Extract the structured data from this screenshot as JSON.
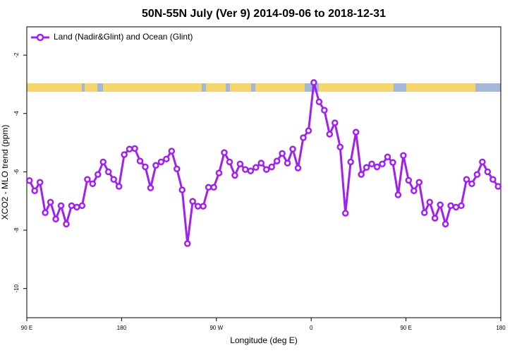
{
  "chart_data": {
    "type": "line",
    "title": "50N-55N July (Ver 9)   2014-09-06 to 2018-12-31",
    "x_label": "Longitude (deg E)",
    "y_label": "XCO2 - MLO trend (ppm)",
    "x": [
      92.5,
      97.5,
      102.5,
      107.5,
      112.5,
      117.5,
      122.5,
      127.5,
      132.5,
      137.5,
      142.5,
      147.5,
      152.5,
      157.5,
      162.5,
      167.5,
      172.5,
      177.5,
      182.5,
      187.5,
      192.5,
      197.5,
      202.5,
      207.5,
      212.5,
      217.5,
      222.5,
      227.5,
      232.5,
      237.5,
      242.5,
      247.5,
      252.5,
      257.5,
      262.5,
      267.5,
      272.5,
      277.5,
      282.5,
      287.5,
      292.5,
      297.5,
      302.5,
      307.5,
      312.5,
      317.5,
      322.5,
      327.5,
      332.5,
      337.5,
      342.5,
      347.5,
      352.5,
      357.5,
      362.5,
      367.5,
      372.5,
      377.5,
      382.5,
      387.5,
      392.5,
      397.5,
      402.5,
      407.5,
      412.5,
      417.5,
      422.5,
      427.5,
      432.5,
      437.5,
      442.5,
      447.5,
      452.5,
      457.5,
      462.5,
      467.5,
      472.5,
      477.5,
      482.5,
      487.5,
      492.5,
      497.5,
      502.5,
      507.5,
      512.5,
      517.5,
      522.5,
      527.5,
      532.5,
      537.5
    ],
    "series": [
      {
        "name": "Land (Nadir&Glint) and Ocean (Glint)",
        "color": "#a020f0",
        "values": [
          -6.3,
          -6.65,
          -6.36,
          -7.4,
          -7.04,
          -7.62,
          -7.16,
          -7.79,
          -7.16,
          -7.21,
          -7.16,
          -6.26,
          -6.41,
          -6.09,
          -5.66,
          -6.0,
          -6.26,
          -6.5,
          -5.41,
          -5.22,
          -5.2,
          -5.63,
          -5.83,
          -6.55,
          -5.78,
          -5.66,
          -5.56,
          -5.29,
          -5.9,
          -6.62,
          -8.46,
          -7.01,
          -7.18,
          -7.18,
          -6.53,
          -6.53,
          -6.04,
          -5.34,
          -5.66,
          -6.12,
          -5.73,
          -5.92,
          -5.97,
          -5.85,
          -5.7,
          -5.92,
          -5.83,
          -5.63,
          -5.37,
          -5.7,
          -5.22,
          -5.87,
          -4.83,
          -4.59,
          -2.94,
          -3.6,
          -3.89,
          -4.71,
          -4.32,
          -5.15,
          -7.42,
          -5.66,
          -4.64,
          -6.09,
          -5.85,
          -5.73,
          -5.83,
          -5.73,
          -5.49,
          -5.68,
          -6.79,
          -5.44,
          -6.29,
          -6.65,
          -6.36,
          -7.4,
          -7.04,
          -7.59,
          -7.13,
          -7.79,
          -7.16,
          -7.21,
          -7.16,
          -6.26,
          -6.41,
          -6.09,
          -5.66,
          -6.0,
          -6.26,
          -6.5
        ]
      }
    ],
    "xlim": [
      90,
      540
    ],
    "xticks": [
      {
        "value": 90,
        "label": "90 E"
      },
      180,
      {
        "value": 270,
        "label": "90 W"
      },
      {
        "value": 360,
        "label": "0"
      },
      {
        "value": 450,
        "label": "90 E"
      },
      {
        "value": 540,
        "label": "180"
      }
    ],
    "ylim": [
      -11.0,
      -1.03
    ],
    "yticks": [
      -2,
      -4,
      -6,
      -8,
      -10
    ],
    "legend": "top-left"
  }
}
